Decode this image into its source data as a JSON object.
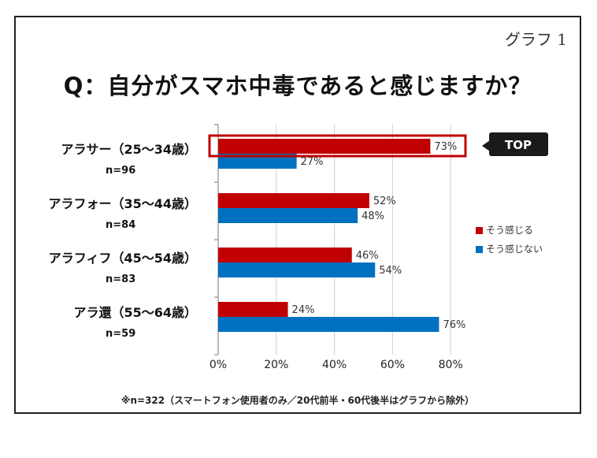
{
  "graph_label": "グラフ 1",
  "title": "Q：自分がスマホ中毒であると感じますか？",
  "footnote": "※n=322（スマートフォン使用者のみ／20代前半・60代後半はグラフから除外）",
  "highlight_badge": "TOP",
  "colors": {
    "series1": "#c00000",
    "series2": "#0070c0",
    "highlight": "#c00000",
    "badge": "#1a1a1a"
  },
  "chart_data": {
    "type": "bar",
    "orientation": "horizontal",
    "categories": [
      "アラサー（25～34歳）",
      "アラフォー（35～44歳）",
      "アラフィフ（45～54歳）",
      "アラ還（55～64歳）"
    ],
    "category_n": [
      "n=96",
      "n=84",
      "n=83",
      "n=59"
    ],
    "series": [
      {
        "name": "そう感じる",
        "values": [
          73,
          52,
          46,
          24
        ]
      },
      {
        "name": "そう感じない",
        "values": [
          27,
          48,
          54,
          76
        ]
      }
    ],
    "xlim": [
      0,
      80
    ],
    "xticks": [
      "0%",
      "20%",
      "40%",
      "60%",
      "80%"
    ],
    "value_suffix": "%",
    "grid": true,
    "legend": "right"
  }
}
